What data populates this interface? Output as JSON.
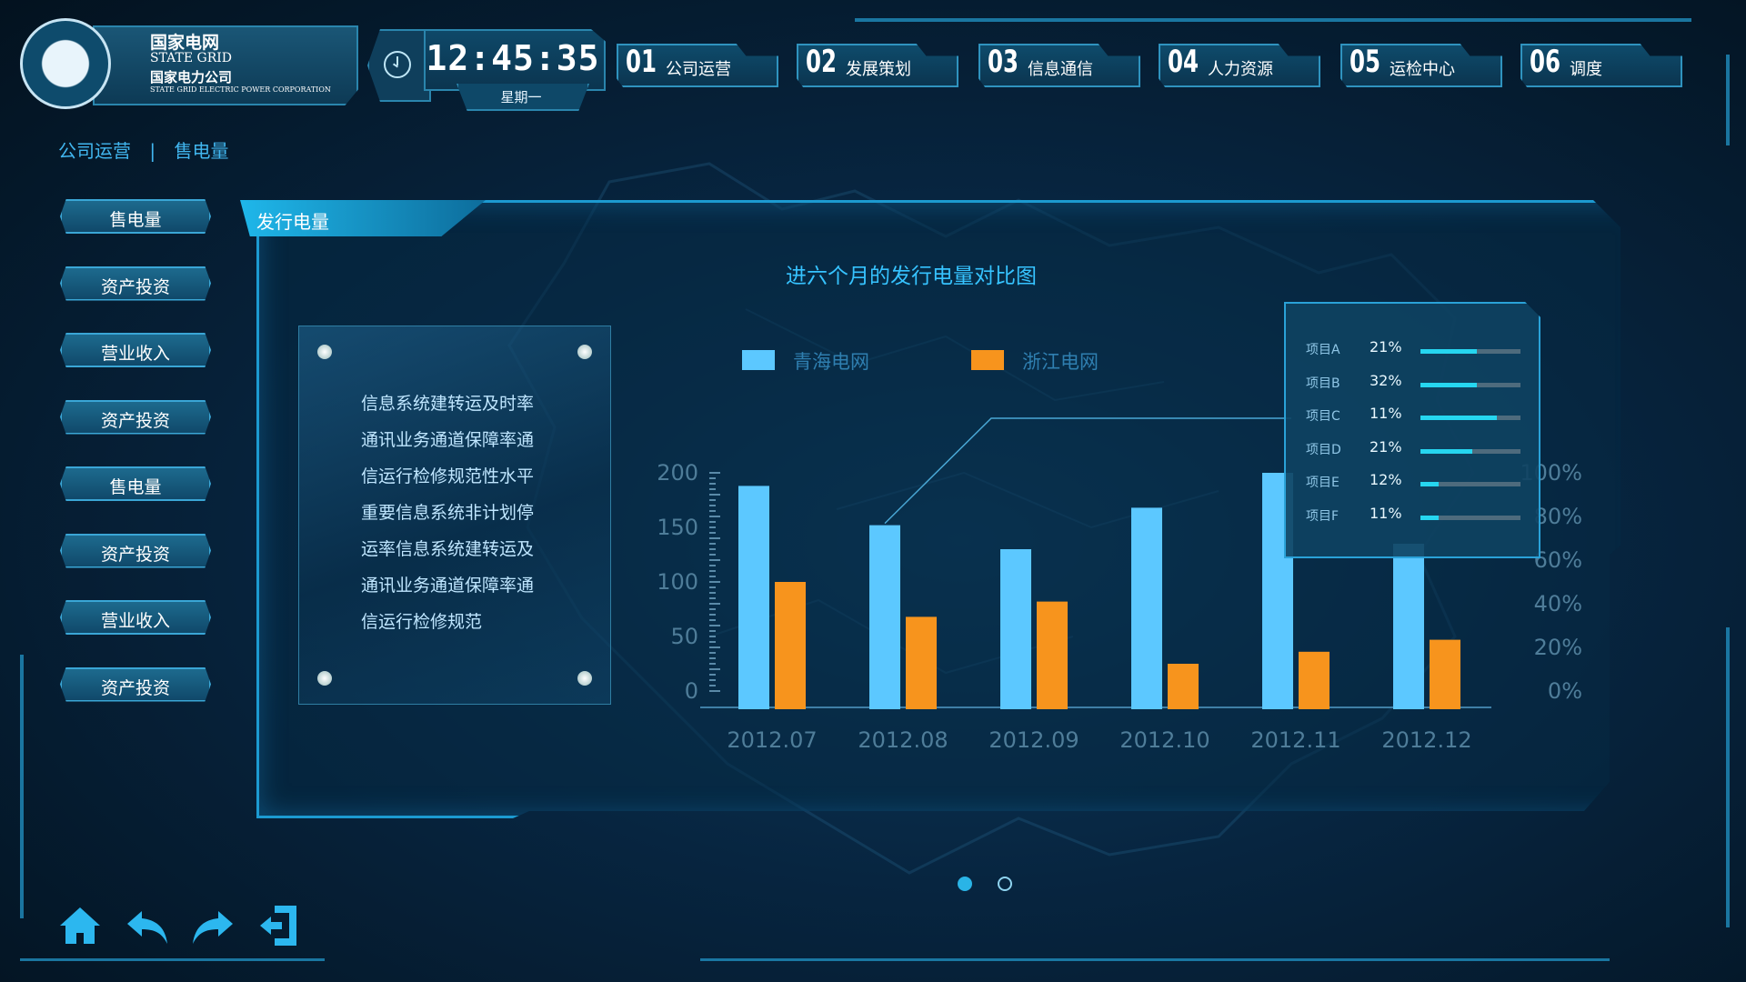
{
  "header": {
    "logo": {
      "name_cn": "国家电网",
      "name_en": "STATE GRID",
      "company_cn": "国家电力公司",
      "company_en": "STATE GRID ELECTRIC POWER CORPORATION"
    },
    "time": "12:45:35",
    "weekday": "星期一",
    "tabs": [
      {
        "num": "01",
        "label": "公司运营"
      },
      {
        "num": "02",
        "label": "发展策划"
      },
      {
        "num": "03",
        "label": "信息通信"
      },
      {
        "num": "04",
        "label": "人力资源"
      },
      {
        "num": "05",
        "label": "运检中心"
      },
      {
        "num": "06",
        "label": "调度"
      }
    ]
  },
  "breadcrumb": {
    "first": "公司运营",
    "sep": "|",
    "second": "售电量"
  },
  "sidebar": {
    "items": [
      {
        "label": "售电量"
      },
      {
        "label": "资产投资"
      },
      {
        "label": "营业收入"
      },
      {
        "label": "资产投资"
      },
      {
        "label": "售电量"
      },
      {
        "label": "资产投资"
      },
      {
        "label": "营业收入"
      },
      {
        "label": "资产投资"
      }
    ]
  },
  "panel": {
    "tab_label": "发行电量",
    "chart_title": "进六个月的发行电量对比图",
    "info_lines": [
      "信息系统建转运及时率",
      "通讯业务通道保障率通",
      "信运行检修规范性水平",
      "重要信息系统非计划停",
      "运率信息系统建转运及",
      "通讯业务通道保障率通",
      "信运行检修规范"
    ],
    "popup": {
      "rows": [
        {
          "label": "项目A",
          "value": "21%",
          "fill": 0.56
        },
        {
          "label": "项目B",
          "value": "32%",
          "fill": 0.56
        },
        {
          "label": "项目C",
          "value": "11%",
          "fill": 0.76
        },
        {
          "label": "项目D",
          "value": "21%",
          "fill": 0.52
        },
        {
          "label": "项目E",
          "value": "12%",
          "fill": 0.18
        },
        {
          "label": "项目F",
          "value": "11%",
          "fill": 0.18
        }
      ]
    }
  },
  "colors": {
    "series1": "#5cc8ff",
    "series2": "#f7941d",
    "accent": "#36c3ff"
  },
  "chart_data": {
    "type": "bar",
    "categories": [
      "2012.07",
      "2012.08",
      "2012.09",
      "2012.10",
      "2012.11",
      "2012.12"
    ],
    "series": [
      {
        "name": "青海电网",
        "values": [
          188,
          152,
          130,
          168,
          200,
          135
        ]
      },
      {
        "name": "浙江电网",
        "values": [
          100,
          68,
          82,
          25,
          36,
          47
        ]
      }
    ],
    "y_ticks": [
      "200",
      "150",
      "100",
      "50",
      "0"
    ],
    "y2_ticks": [
      "100%",
      "80%",
      "60%",
      "40%",
      "20%",
      "0%"
    ],
    "ylim": [
      0,
      200
    ],
    "legend_position": "top"
  },
  "pager": {
    "count": 2,
    "active": 0
  },
  "bottom_icons": [
    "home-icon",
    "back-icon",
    "forward-icon",
    "exit-icon"
  ]
}
